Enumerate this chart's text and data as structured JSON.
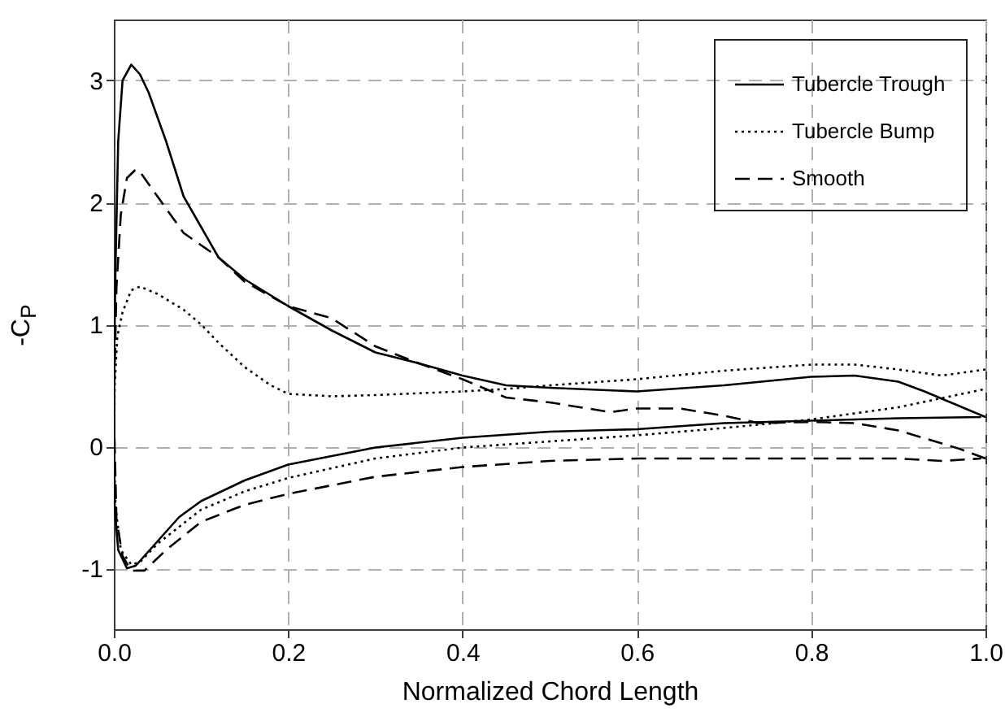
{
  "chart_data": {
    "type": "line",
    "xlabel": "Normalized Chord Length",
    "ylabel": "-C$_{P}$",
    "xlim": [
      0,
      1
    ],
    "ylim": [
      -1.5,
      3.5
    ],
    "xticks": [
      {
        "value": 0,
        "label": "0.0"
      },
      {
        "value": 0.2,
        "label": "0.2"
      },
      {
        "value": 0.4,
        "label": "0.4"
      },
      {
        "value": 0.6,
        "label": "0.6"
      },
      {
        "value": 0.8,
        "label": "0.8"
      },
      {
        "value": 1,
        "label": "1.0"
      }
    ],
    "yticks": [
      -1,
      0,
      1,
      2,
      3
    ],
    "grid": true,
    "legend": "top right",
    "marker": "none",
    "series": [
      {
        "name": "Tubercle Trough",
        "color": "#000000",
        "line_style": "solid",
        "x": [
          1.0,
          0.97,
          0.93,
          0.9,
          0.85,
          0.8,
          0.7,
          0.6,
          0.5,
          0.45,
          0.4,
          0.35,
          0.3,
          0.25,
          0.2,
          0.15,
          0.12,
          0.1,
          0.08,
          0.06,
          0.04,
          0.03,
          0.02,
          0.01,
          0.005,
          0.002,
          0,
          0.001,
          0.005,
          0.015,
          0.025,
          0.05,
          0.075,
          0.1,
          0.15,
          0.2,
          0.3,
          0.4,
          0.5,
          0.6,
          0.7,
          0.8,
          0.9,
          0.995
        ],
        "values": [
          0.24,
          0.33,
          0.45,
          0.53,
          0.58,
          0.57,
          0.5,
          0.45,
          0.48,
          0.5,
          0.58,
          0.68,
          0.77,
          0.95,
          1.15,
          1.37,
          1.55,
          1.8,
          2.05,
          2.5,
          2.9,
          3.05,
          3.13,
          3.0,
          2.5,
          1.5,
          0.5,
          -0.5,
          -0.85,
          -1.0,
          -0.98,
          -0.78,
          -0.58,
          -0.45,
          -0.28,
          -0.15,
          -0.01,
          0.07,
          0.12,
          0.14,
          0.19,
          0.21,
          0.23,
          0.24
        ]
      },
      {
        "name": "Tubercle Bump",
        "color": "#000000",
        "line_style": "dotted",
        "x": [
          1.0,
          0.97,
          0.95,
          0.9,
          0.85,
          0.8,
          0.7,
          0.6,
          0.5,
          0.45,
          0.4,
          0.3,
          0.25,
          0.2,
          0.18,
          0.15,
          0.12,
          0.1,
          0.08,
          0.05,
          0.03,
          0.02,
          0.01,
          0.004,
          0.001,
          0,
          0.002,
          0.008,
          0.02,
          0.03,
          0.05,
          0.1,
          0.15,
          0.2,
          0.3,
          0.4,
          0.5,
          0.6,
          0.7,
          0.8,
          0.9,
          1.0
        ],
        "values": [
          0.63,
          0.6,
          0.58,
          0.63,
          0.67,
          0.67,
          0.62,
          0.55,
          0.5,
          0.47,
          0.45,
          0.42,
          0.41,
          0.43,
          0.5,
          0.65,
          0.85,
          1.0,
          1.12,
          1.25,
          1.31,
          1.28,
          1.1,
          0.9,
          0.5,
          0,
          -0.5,
          -0.85,
          -0.97,
          -0.95,
          -0.8,
          -0.52,
          -0.37,
          -0.26,
          -0.1,
          -0.01,
          0.04,
          0.09,
          0.15,
          0.22,
          0.32,
          0.47
        ]
      },
      {
        "name": "Smooth",
        "color": "#000000",
        "line_style": "dashed",
        "x": [
          1.0,
          0.97,
          0.9,
          0.85,
          0.8,
          0.74,
          0.7,
          0.65,
          0.6,
          0.57,
          0.5,
          0.45,
          0.4,
          0.35,
          0.3,
          0.25,
          0.2,
          0.15,
          0.12,
          0.08,
          0.05,
          0.03,
          0.025,
          0.015,
          0.008,
          0.003,
          0,
          0.003,
          0.01,
          0.02,
          0.035,
          0.06,
          0.1,
          0.15,
          0.2,
          0.3,
          0.4,
          0.5,
          0.6,
          0.7,
          0.8,
          0.9,
          0.95,
          0.995
        ],
        "values": [
          -0.1,
          -0.02,
          0.13,
          0.19,
          0.2,
          0.19,
          0.25,
          0.31,
          0.31,
          0.28,
          0.36,
          0.4,
          0.55,
          0.68,
          0.82,
          1.05,
          1.15,
          1.35,
          1.55,
          1.75,
          2.05,
          2.25,
          2.27,
          2.2,
          1.9,
          1.3,
          0.3,
          -0.6,
          -0.9,
          -1.02,
          -1.02,
          -0.85,
          -0.62,
          -0.48,
          -0.39,
          -0.25,
          -0.17,
          -0.12,
          -0.1,
          -0.1,
          -0.1,
          -0.1,
          -0.12,
          -0.1
        ]
      }
    ]
  }
}
